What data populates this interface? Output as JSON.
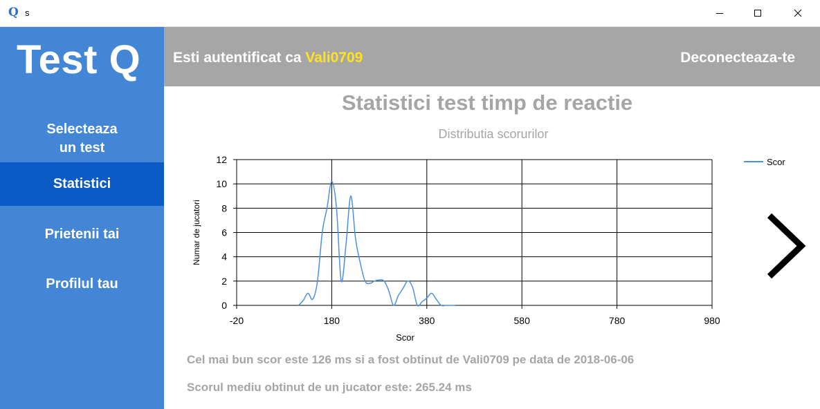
{
  "window": {
    "app_icon": "Q",
    "title": "s"
  },
  "sidebar": {
    "logo": "Test Q",
    "items": [
      {
        "label_line1": "Selecteaza",
        "label_line2": "un test",
        "active": false
      },
      {
        "label": "Statistici",
        "active": true
      },
      {
        "label": "Prietenii tai",
        "active": false
      },
      {
        "label": "Profilul tau",
        "active": false
      }
    ]
  },
  "header": {
    "auth_prefix": "Esti autentificat ca ",
    "username": "Vali0709",
    "logout_label": "Deconecteaza-te"
  },
  "main": {
    "title": "Statistici test timp de reactie",
    "stat_best": "Cel mai bun scor este 126 ms si a fost obtinut de Vali0709 pe data de 2018-06-06",
    "stat_average": "Scorul mediu obtinut de un jucator este: 265.24 ms",
    "next_icon": "chevron-right-icon"
  },
  "chart_data": {
    "type": "line",
    "title": "Distributia scorurilor",
    "xlabel": "Scor",
    "ylabel": "Numar de jucatori",
    "xlim": [
      -20,
      980
    ],
    "ylim": [
      0,
      12
    ],
    "xticks": [
      -20,
      180,
      380,
      580,
      780,
      980
    ],
    "yticks": [
      0,
      2,
      4,
      6,
      8,
      10,
      12
    ],
    "grid": true,
    "legend_position": "top-right",
    "series": [
      {
        "name": "Scor",
        "color": "#4a90e2",
        "x": [
          110,
          120,
          130,
          140,
          150,
          160,
          170,
          180,
          190,
          200,
          210,
          220,
          230,
          240,
          250,
          260,
          270,
          280,
          290,
          300,
          310,
          320,
          330,
          340,
          350,
          360,
          370,
          380,
          390,
          400,
          410,
          420,
          430,
          440
        ],
        "y": [
          0,
          0.4,
          1,
          0.5,
          2,
          6,
          8,
          10.2,
          8,
          2,
          5,
          9,
          5.5,
          3.5,
          2,
          1.8,
          2,
          2.1,
          2,
          1.2,
          0,
          0.8,
          1.4,
          2,
          1.5,
          0,
          0.3,
          0.6,
          1,
          0.5,
          0,
          0,
          0,
          0
        ]
      }
    ]
  }
}
